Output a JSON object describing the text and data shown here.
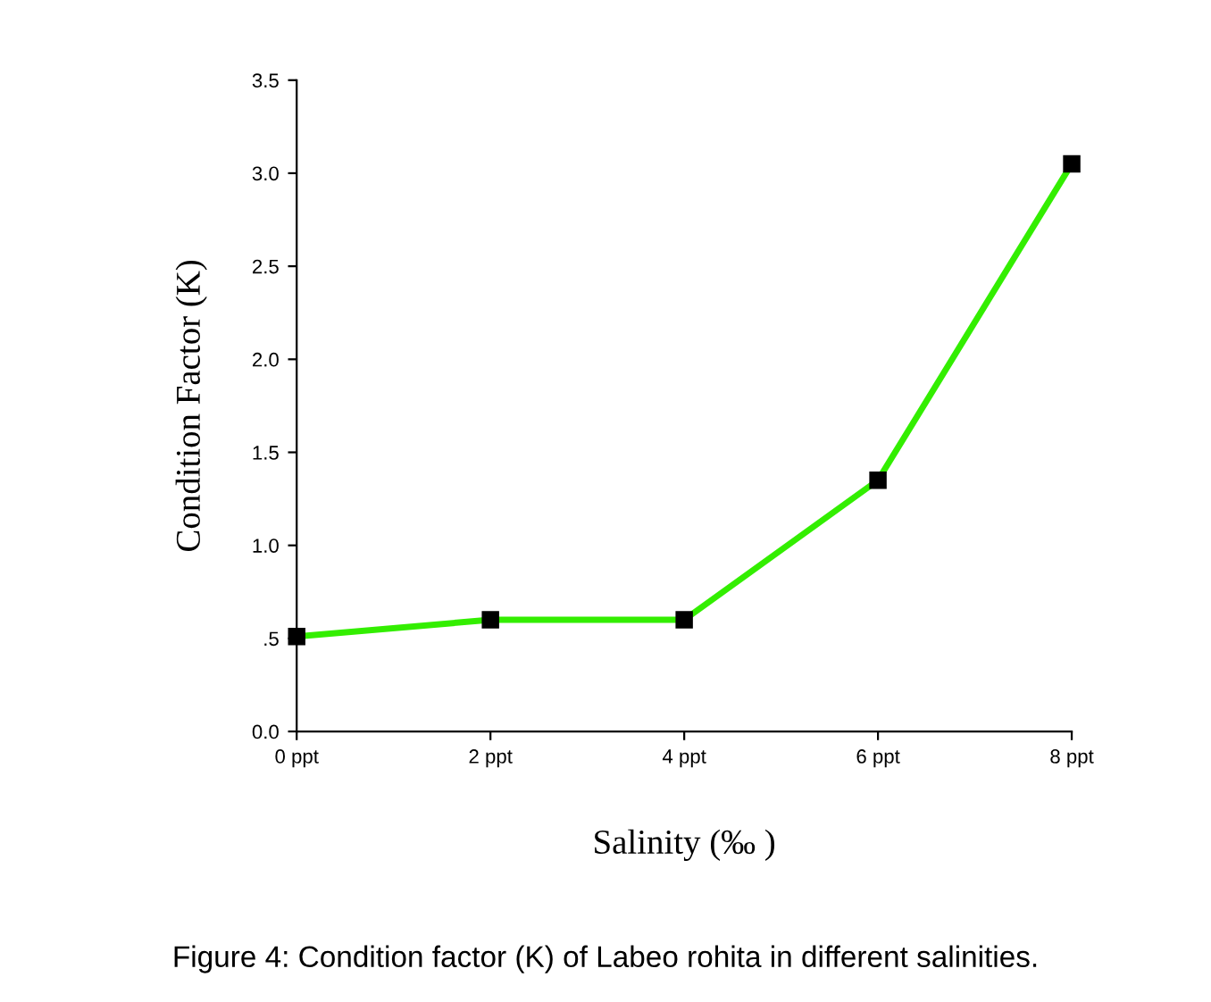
{
  "chart_data": {
    "type": "line",
    "categories": [
      "0 ppt",
      "2 ppt",
      "4 ppt",
      "6 ppt",
      "8 ppt"
    ],
    "series": [
      {
        "color": "#33ee00",
        "values": [
          0.51,
          0.6,
          0.6,
          1.35,
          3.05
        ]
      }
    ],
    "xlabel": "Salinity (‰ )",
    "ylabel": "Condition Factor (K)",
    "ylim": [
      0,
      3.5
    ],
    "yticks": [
      {
        "value": 0,
        "label": "0.0"
      },
      {
        "value": 0.5,
        "label": ".5"
      },
      {
        "value": 1,
        "label": "1.0"
      },
      {
        "value": 1.5,
        "label": "1.5"
      },
      {
        "value": 2,
        "label": "2.0"
      },
      {
        "value": 2.5,
        "label": "2.5"
      },
      {
        "value": 3,
        "label": "3.0"
      },
      {
        "value": 3.5,
        "label": "3.5"
      }
    ],
    "marker": "square",
    "line_style": "solid",
    "grid": false,
    "legend": false,
    "annotations": [
      "Figure 4: Condition factor (K) of Labeo rohita in different salinities."
    ]
  }
}
